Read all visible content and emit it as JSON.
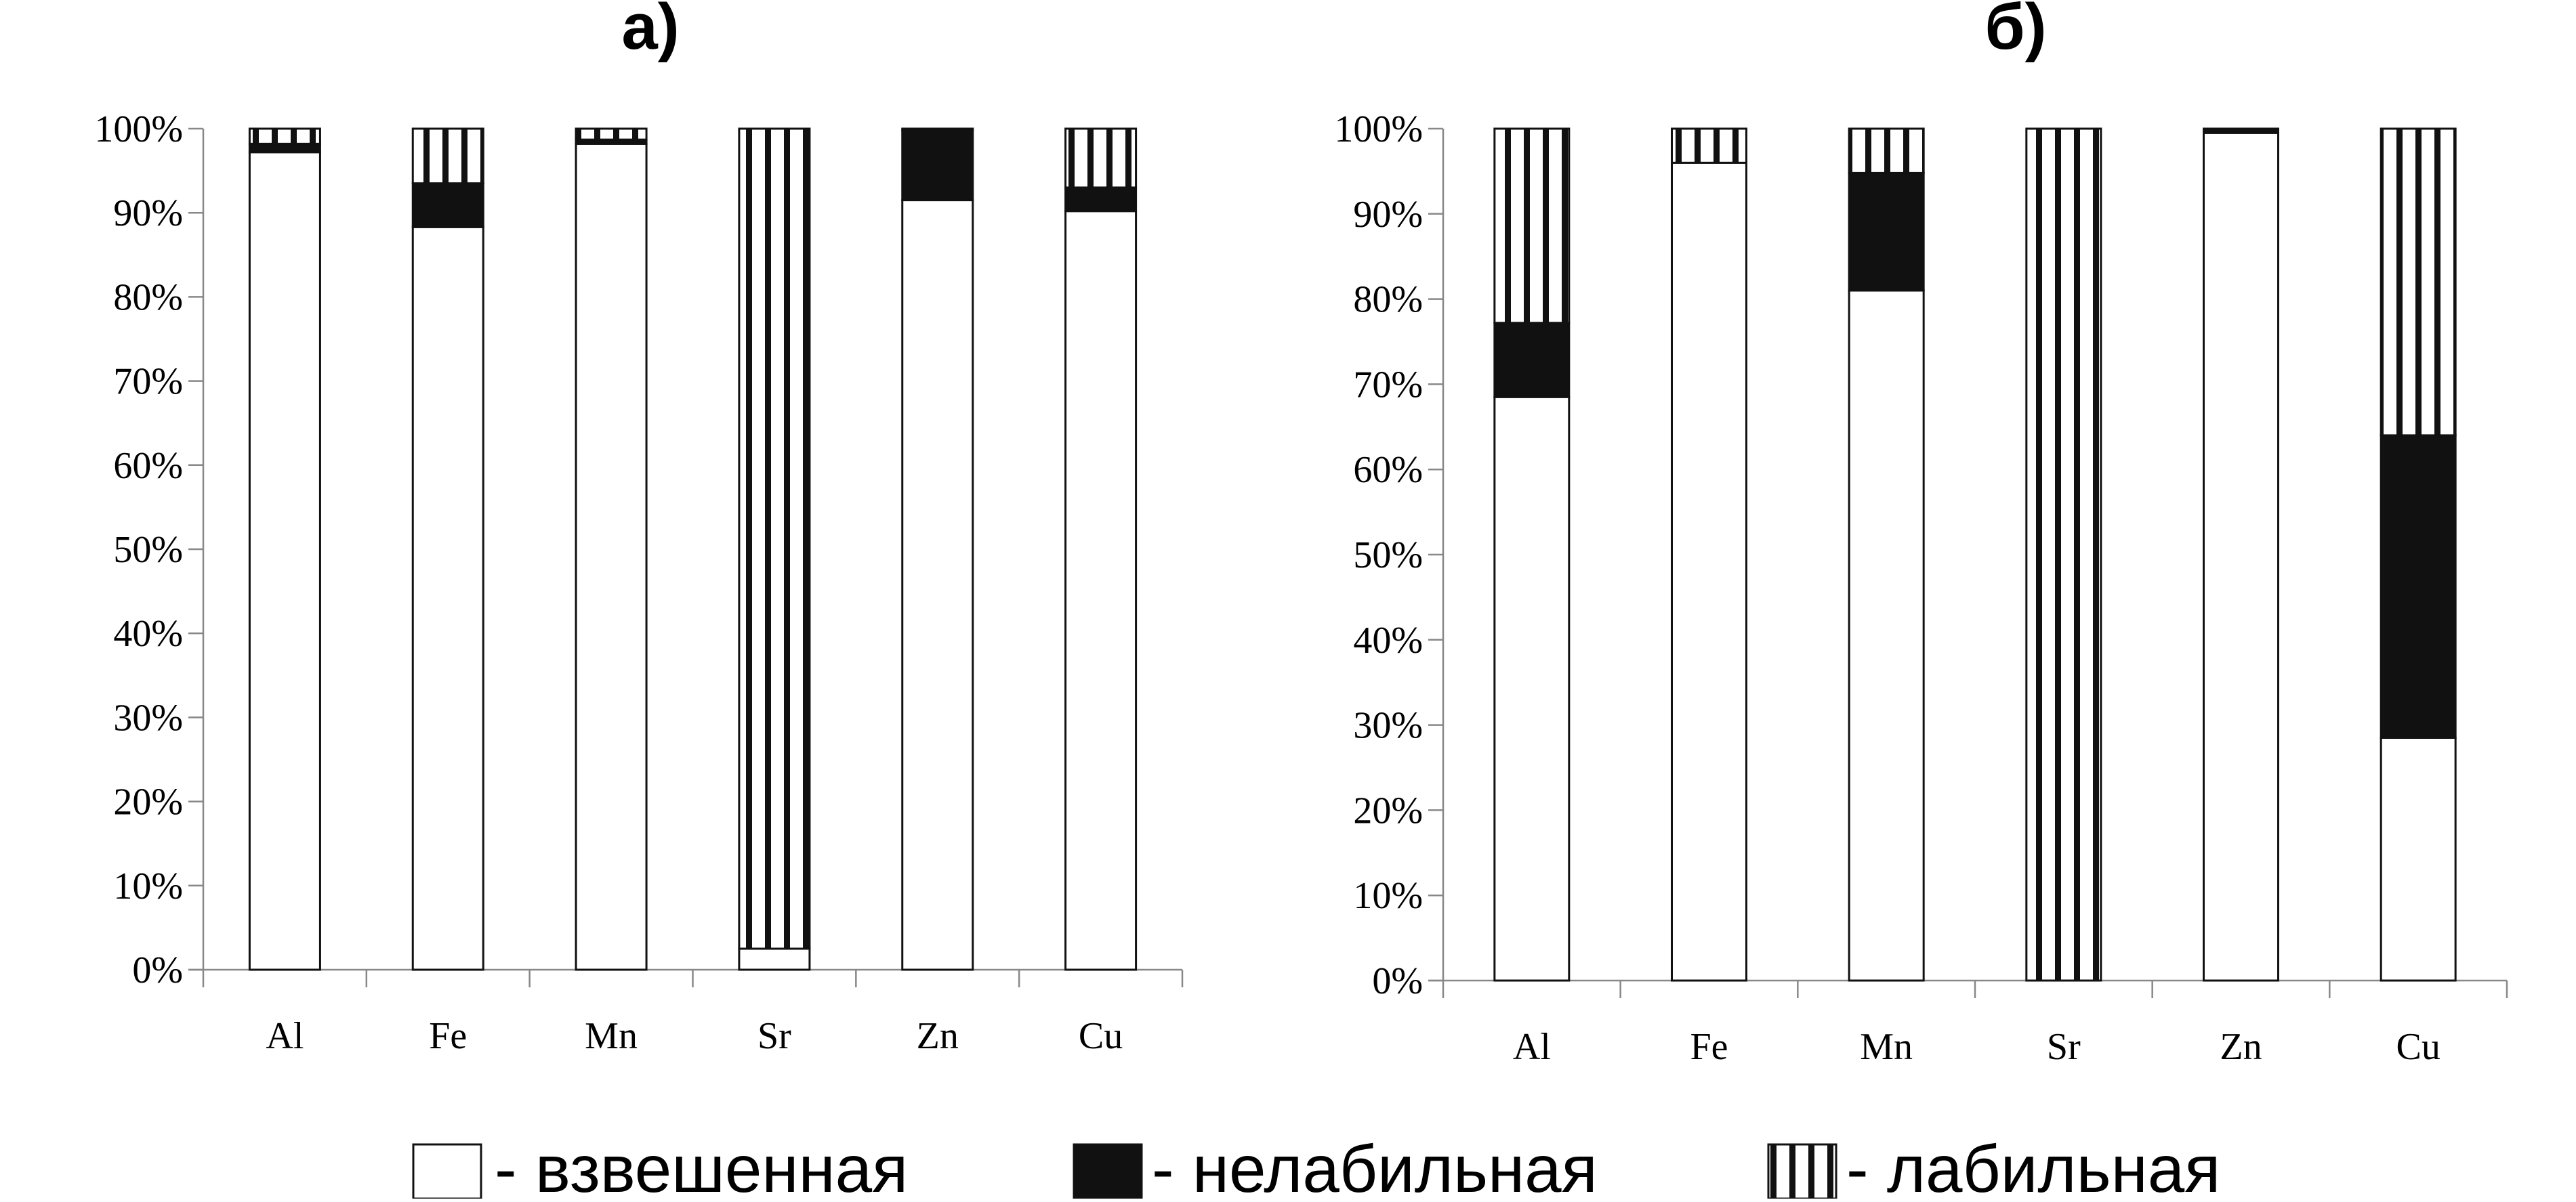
{
  "chart_data": [
    {
      "type": "bar",
      "stacked": true,
      "title": "а)",
      "categories": [
        "Al",
        "Fe",
        "Mn",
        "Sr",
        "Zn",
        "Cu"
      ],
      "ylim": [
        0,
        100
      ],
      "y_ticks": [
        "0%",
        "10%",
        "20%",
        "30%",
        "40%",
        "50%",
        "60%",
        "70%",
        "80%",
        "90%",
        "100%"
      ],
      "grid": false,
      "series": [
        {
          "name": "- взвешенная",
          "fill": "#ffffff",
          "pattern": "none",
          "values": [
            97.2,
            88.3,
            98.2,
            2.5,
            91.5,
            90.2
          ]
        },
        {
          "name": "- нелабильная",
          "fill": "#111111",
          "pattern": "solid",
          "values": [
            1.0,
            5.2,
            0.5,
            0.0,
            8.3,
            2.8
          ]
        },
        {
          "name": "- лабильная",
          "fill": "#ffffff",
          "pattern": "vertical-lines",
          "values": [
            1.8,
            6.5,
            1.3,
            97.5,
            0.2,
            7.0
          ]
        }
      ]
    },
    {
      "type": "bar",
      "stacked": true,
      "title": "б)",
      "categories": [
        "Al",
        "Fe",
        "Mn",
        "Sr",
        "Zn",
        "Cu"
      ],
      "ylim": [
        0,
        100
      ],
      "y_ticks": [
        "0%",
        "10%",
        "20%",
        "30%",
        "40%",
        "50%",
        "60%",
        "70%",
        "80%",
        "90%",
        "100%"
      ],
      "grid": false,
      "series": [
        {
          "name": "- взвешенная",
          "fill": "#ffffff",
          "pattern": "none",
          "values": [
            68.5,
            96.0,
            81.0,
            0.0,
            99.5,
            28.5
          ]
        },
        {
          "name": "- нелабильная",
          "fill": "#111111",
          "pattern": "solid",
          "values": [
            8.7,
            0.0,
            13.8,
            0.0,
            0.5,
            35.5
          ]
        },
        {
          "name": "- лабильная",
          "fill": "#ffffff",
          "pattern": "vertical-lines",
          "values": [
            22.8,
            4.0,
            5.2,
            100.0,
            0.0,
            36.0
          ]
        }
      ]
    }
  ],
  "legend": {
    "position": "bottom",
    "items": [
      {
        "label": "- взвешенная",
        "pattern": "none"
      },
      {
        "label": "- нелабильная",
        "pattern": "solid"
      },
      {
        "label": "- лабильная",
        "pattern": "vertical-lines"
      }
    ]
  }
}
